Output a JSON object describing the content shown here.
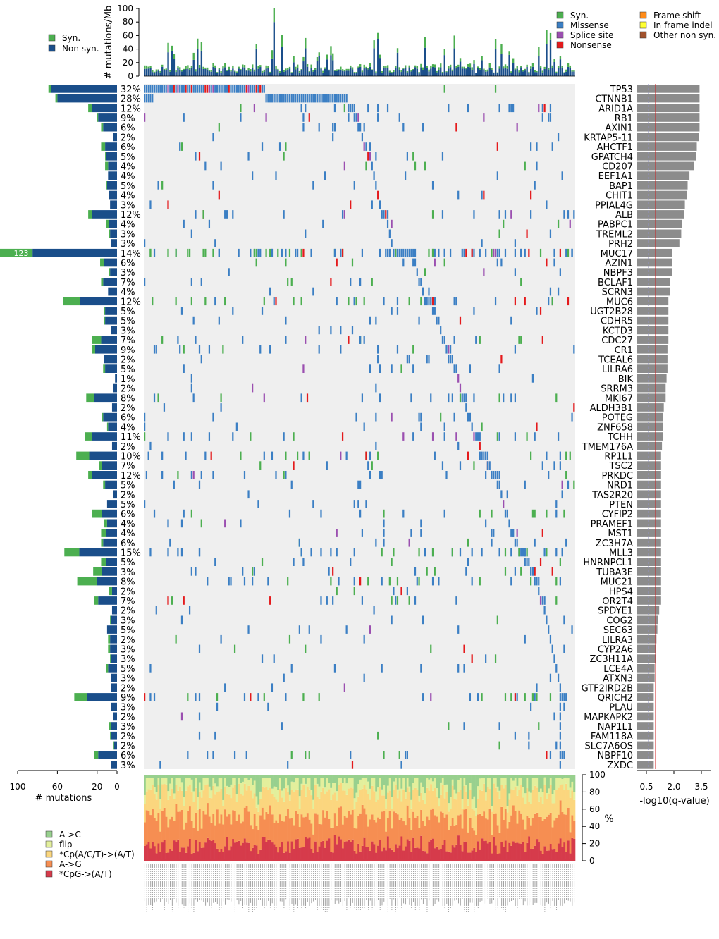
{
  "chart_data": {
    "type": "heatmap",
    "title": "",
    "top_panel": {
      "ylabel": "# mutations/Mb",
      "yticks": [
        0,
        20,
        40,
        60,
        80,
        100
      ],
      "ylim": [
        0,
        100
      ],
      "legend": [
        {
          "name": "Syn.",
          "color": "#4caf50"
        },
        {
          "name": "Non syn.",
          "color": "#1a4e8a"
        }
      ]
    },
    "mutation_legend": [
      {
        "name": "Syn.",
        "color": "#4caf50"
      },
      {
        "name": "Missense",
        "color": "#3b7fc4"
      },
      {
        "name": "Splice site",
        "color": "#9b4fb0"
      },
      {
        "name": "Nonsense",
        "color": "#e41a1c"
      },
      {
        "name": "Frame shift",
        "color": "#ff8c1a"
      },
      {
        "name": "In frame indel",
        "color": "#ffff33"
      },
      {
        "name": "Other non syn.",
        "color": "#a0522d"
      }
    ],
    "left_panel": {
      "xlabel": "# mutations",
      "xticks": [
        100,
        60,
        20,
        0
      ],
      "xlim": [
        0,
        100
      ],
      "overflow_label": "123"
    },
    "right_panel": {
      "xlabel": "-log10(q-value)",
      "xticks": [
        "0.5",
        "2.0",
        "3.5"
      ],
      "xlim": [
        0,
        4
      ]
    },
    "genes": [
      {
        "gene": "TP53",
        "pct": "32%",
        "nonsyn": 66,
        "syn": 3,
        "q": 3.4
      },
      {
        "gene": "CTNNB1",
        "pct": "28%",
        "nonsyn": 60,
        "syn": 2,
        "q": 3.4
      },
      {
        "gene": "ARID1A",
        "pct": "12%",
        "nonsyn": 25,
        "syn": 4,
        "q": 3.4
      },
      {
        "gene": "RB1",
        "pct": "9%",
        "nonsyn": 19,
        "syn": 1,
        "q": 3.4
      },
      {
        "gene": "AXIN1",
        "pct": "6%",
        "nonsyn": 14,
        "syn": 2,
        "q": 3.4
      },
      {
        "gene": "KRTAP5-11",
        "pct": "2%",
        "nonsyn": 4,
        "syn": 0,
        "q": 3.35
      },
      {
        "gene": "AHCTF1",
        "pct": "6%",
        "nonsyn": 12,
        "syn": 4,
        "q": 3.25
      },
      {
        "gene": "GPATCH4",
        "pct": "5%",
        "nonsyn": 11,
        "syn": 1,
        "q": 3.2
      },
      {
        "gene": "CD207",
        "pct": "4%",
        "nonsyn": 9,
        "syn": 3,
        "q": 3.1
      },
      {
        "gene": "EEF1A1",
        "pct": "4%",
        "nonsyn": 9,
        "syn": 0,
        "q": 2.85
      },
      {
        "gene": "BAP1",
        "pct": "5%",
        "nonsyn": 10,
        "syn": 1,
        "q": 2.75
      },
      {
        "gene": "CHIT1",
        "pct": "4%",
        "nonsyn": 8,
        "syn": 0,
        "q": 2.7
      },
      {
        "gene": "PPIAL4G",
        "pct": "3%",
        "nonsyn": 7,
        "syn": 0,
        "q": 2.6
      },
      {
        "gene": "ALB",
        "pct": "12%",
        "nonsyn": 25,
        "syn": 4,
        "q": 2.55
      },
      {
        "gene": "PABPC1",
        "pct": "4%",
        "nonsyn": 8,
        "syn": 3,
        "q": 2.45
      },
      {
        "gene": "TREML2",
        "pct": "3%",
        "nonsyn": 7,
        "syn": 1,
        "q": 2.4
      },
      {
        "gene": "PRH2",
        "pct": "3%",
        "nonsyn": 6,
        "syn": 0,
        "q": 2.3
      },
      {
        "gene": "MUC17",
        "pct": "14%",
        "nonsyn": 85,
        "syn": 38,
        "q": 1.9
      },
      {
        "gene": "AZIN1",
        "pct": "6%",
        "nonsyn": 13,
        "syn": 4,
        "q": 1.9
      },
      {
        "gene": "NBPF3",
        "pct": "3%",
        "nonsyn": 7,
        "syn": 1,
        "q": 1.9
      },
      {
        "gene": "BCLAF1",
        "pct": "7%",
        "nonsyn": 14,
        "syn": 2,
        "q": 1.8
      },
      {
        "gene": "SCRN3",
        "pct": "4%",
        "nonsyn": 9,
        "syn": 0,
        "q": 1.8
      },
      {
        "gene": "MUC6",
        "pct": "12%",
        "nonsyn": 37,
        "syn": 17,
        "q": 1.7
      },
      {
        "gene": "UGT2B28",
        "pct": "5%",
        "nonsyn": 12,
        "syn": 1,
        "q": 1.7
      },
      {
        "gene": "CDHR5",
        "pct": "5%",
        "nonsyn": 12,
        "syn": 1,
        "q": 1.7
      },
      {
        "gene": "KCTD3",
        "pct": "3%",
        "nonsyn": 6,
        "syn": 0,
        "q": 1.7
      },
      {
        "gene": "CDC27",
        "pct": "7%",
        "nonsyn": 16,
        "syn": 9,
        "q": 1.7
      },
      {
        "gene": "CR1",
        "pct": "9%",
        "nonsyn": 22,
        "syn": 3,
        "q": 1.65
      },
      {
        "gene": "TCEAL6",
        "pct": "2%",
        "nonsyn": 13,
        "syn": 0,
        "q": 1.65
      },
      {
        "gene": "LILRA6",
        "pct": "5%",
        "nonsyn": 12,
        "syn": 2,
        "q": 1.65
      },
      {
        "gene": "BIK",
        "pct": "1%",
        "nonsyn": 2,
        "syn": 0,
        "q": 1.6
      },
      {
        "gene": "SRRM3",
        "pct": "2%",
        "nonsyn": 4,
        "syn": 0,
        "q": 1.55
      },
      {
        "gene": "MKI67",
        "pct": "8%",
        "nonsyn": 23,
        "syn": 8,
        "q": 1.55
      },
      {
        "gene": "ALDH3B1",
        "pct": "2%",
        "nonsyn": 5,
        "syn": 0,
        "q": 1.45
      },
      {
        "gene": "POTEG",
        "pct": "6%",
        "nonsyn": 14,
        "syn": 1,
        "q": 1.4
      },
      {
        "gene": "ZNF658",
        "pct": "4%",
        "nonsyn": 9,
        "syn": 1,
        "q": 1.4
      },
      {
        "gene": "TCHH",
        "pct": "11%",
        "nonsyn": 25,
        "syn": 7,
        "q": 1.4
      },
      {
        "gene": "TMEM176A",
        "pct": "2%",
        "nonsyn": 5,
        "syn": 0,
        "q": 1.35
      },
      {
        "gene": "RP1L1",
        "pct": "10%",
        "nonsyn": 28,
        "syn": 13,
        "q": 1.3
      },
      {
        "gene": "TSC2",
        "pct": "7%",
        "nonsyn": 15,
        "syn": 3,
        "q": 1.3
      },
      {
        "gene": "PRKDC",
        "pct": "12%",
        "nonsyn": 25,
        "syn": 4,
        "q": 1.3
      },
      {
        "gene": "NRD1",
        "pct": "5%",
        "nonsyn": 12,
        "syn": 2,
        "q": 1.3
      },
      {
        "gene": "TAS2R20",
        "pct": "2%",
        "nonsyn": 4,
        "syn": 0,
        "q": 1.3
      },
      {
        "gene": "PTEN",
        "pct": "5%",
        "nonsyn": 10,
        "syn": 0,
        "q": 1.3
      },
      {
        "gene": "CYFIP2",
        "pct": "6%",
        "nonsyn": 15,
        "syn": 10,
        "q": 1.3
      },
      {
        "gene": "PRAMEF1",
        "pct": "4%",
        "nonsyn": 10,
        "syn": 3,
        "q": 1.3
      },
      {
        "gene": "MST1",
        "pct": "4%",
        "nonsyn": 11,
        "syn": 5,
        "q": 1.3
      },
      {
        "gene": "ZC3H7A",
        "pct": "6%",
        "nonsyn": 14,
        "syn": 2,
        "q": 1.3
      },
      {
        "gene": "MLL3",
        "pct": "15%",
        "nonsyn": 38,
        "syn": 15,
        "q": 1.3
      },
      {
        "gene": "HNRNPCL1",
        "pct": "5%",
        "nonsyn": 11,
        "syn": 5,
        "q": 1.3
      },
      {
        "gene": "TUBA3E",
        "pct": "3%",
        "nonsyn": 15,
        "syn": 9,
        "q": 1.3
      },
      {
        "gene": "MUC21",
        "pct": "8%",
        "nonsyn": 20,
        "syn": 20,
        "q": 1.3
      },
      {
        "gene": "HPS4",
        "pct": "2%",
        "nonsyn": 5,
        "syn": 3,
        "q": 1.3
      },
      {
        "gene": "OR2T4",
        "pct": "7%",
        "nonsyn": 19,
        "syn": 4,
        "q": 1.3
      },
      {
        "gene": "SPDYE1",
        "pct": "2%",
        "nonsyn": 5,
        "syn": 0,
        "q": 1.2
      },
      {
        "gene": "COG2",
        "pct": "3%",
        "nonsyn": 6,
        "syn": 1,
        "q": 1.15
      },
      {
        "gene": "SEC63",
        "pct": "5%",
        "nonsyn": 10,
        "syn": 0,
        "q": 1.1
      },
      {
        "gene": "LILRA3",
        "pct": "2%",
        "nonsyn": 7,
        "syn": 2,
        "q": 1.05
      },
      {
        "gene": "CYP2A6",
        "pct": "3%",
        "nonsyn": 7,
        "syn": 2,
        "q": 1.0
      },
      {
        "gene": "ZC3H11A",
        "pct": "3%",
        "nonsyn": 6,
        "syn": 1,
        "q": 1.0
      },
      {
        "gene": "LCE4A",
        "pct": "5%",
        "nonsyn": 9,
        "syn": 2,
        "q": 0.95
      },
      {
        "gene": "ATXN3",
        "pct": "3%",
        "nonsyn": 6,
        "syn": 0,
        "q": 0.95
      },
      {
        "gene": "GTF2IRD2B",
        "pct": "2%",
        "nonsyn": 6,
        "syn": 0,
        "q": 0.9
      },
      {
        "gene": "QRICH2",
        "pct": "9%",
        "nonsyn": 30,
        "syn": 13,
        "q": 0.9
      },
      {
        "gene": "PLAU",
        "pct": "3%",
        "nonsyn": 6,
        "syn": 0,
        "q": 0.9
      },
      {
        "gene": "MAPKAPK2",
        "pct": "2%",
        "nonsyn": 4,
        "syn": 0,
        "q": 0.9
      },
      {
        "gene": "NAP1L1",
        "pct": "3%",
        "nonsyn": 6,
        "syn": 2,
        "q": 0.9
      },
      {
        "gene": "FAM118A",
        "pct": "2%",
        "nonsyn": 6,
        "syn": 1,
        "q": 0.9
      },
      {
        "gene": "SLC7A6OS",
        "pct": "2%",
        "nonsyn": 3,
        "syn": 1,
        "q": 0.9
      },
      {
        "gene": "NBPF10",
        "pct": "6%",
        "nonsyn": 19,
        "syn": 4,
        "q": 0.9
      },
      {
        "gene": "ZXDC",
        "pct": "3%",
        "nonsyn": 6,
        "syn": 0,
        "q": 0.9
      }
    ],
    "bottom_panel": {
      "ylabel": "%",
      "yticks": [
        0,
        20,
        40,
        60,
        80,
        100
      ],
      "ylim": [
        0,
        100
      ],
      "legend": [
        {
          "name": "A->C",
          "color": "#98d08e"
        },
        {
          "name": "flip",
          "color": "#e3ef9c"
        },
        {
          "name": "*Cp(A/C/T)->(A/T)",
          "color": "#fbd67e"
        },
        {
          "name": "A->G",
          "color": "#f68e52"
        },
        {
          "name": "*CpG->(A/T)",
          "color": "#d63b4b"
        }
      ]
    }
  }
}
